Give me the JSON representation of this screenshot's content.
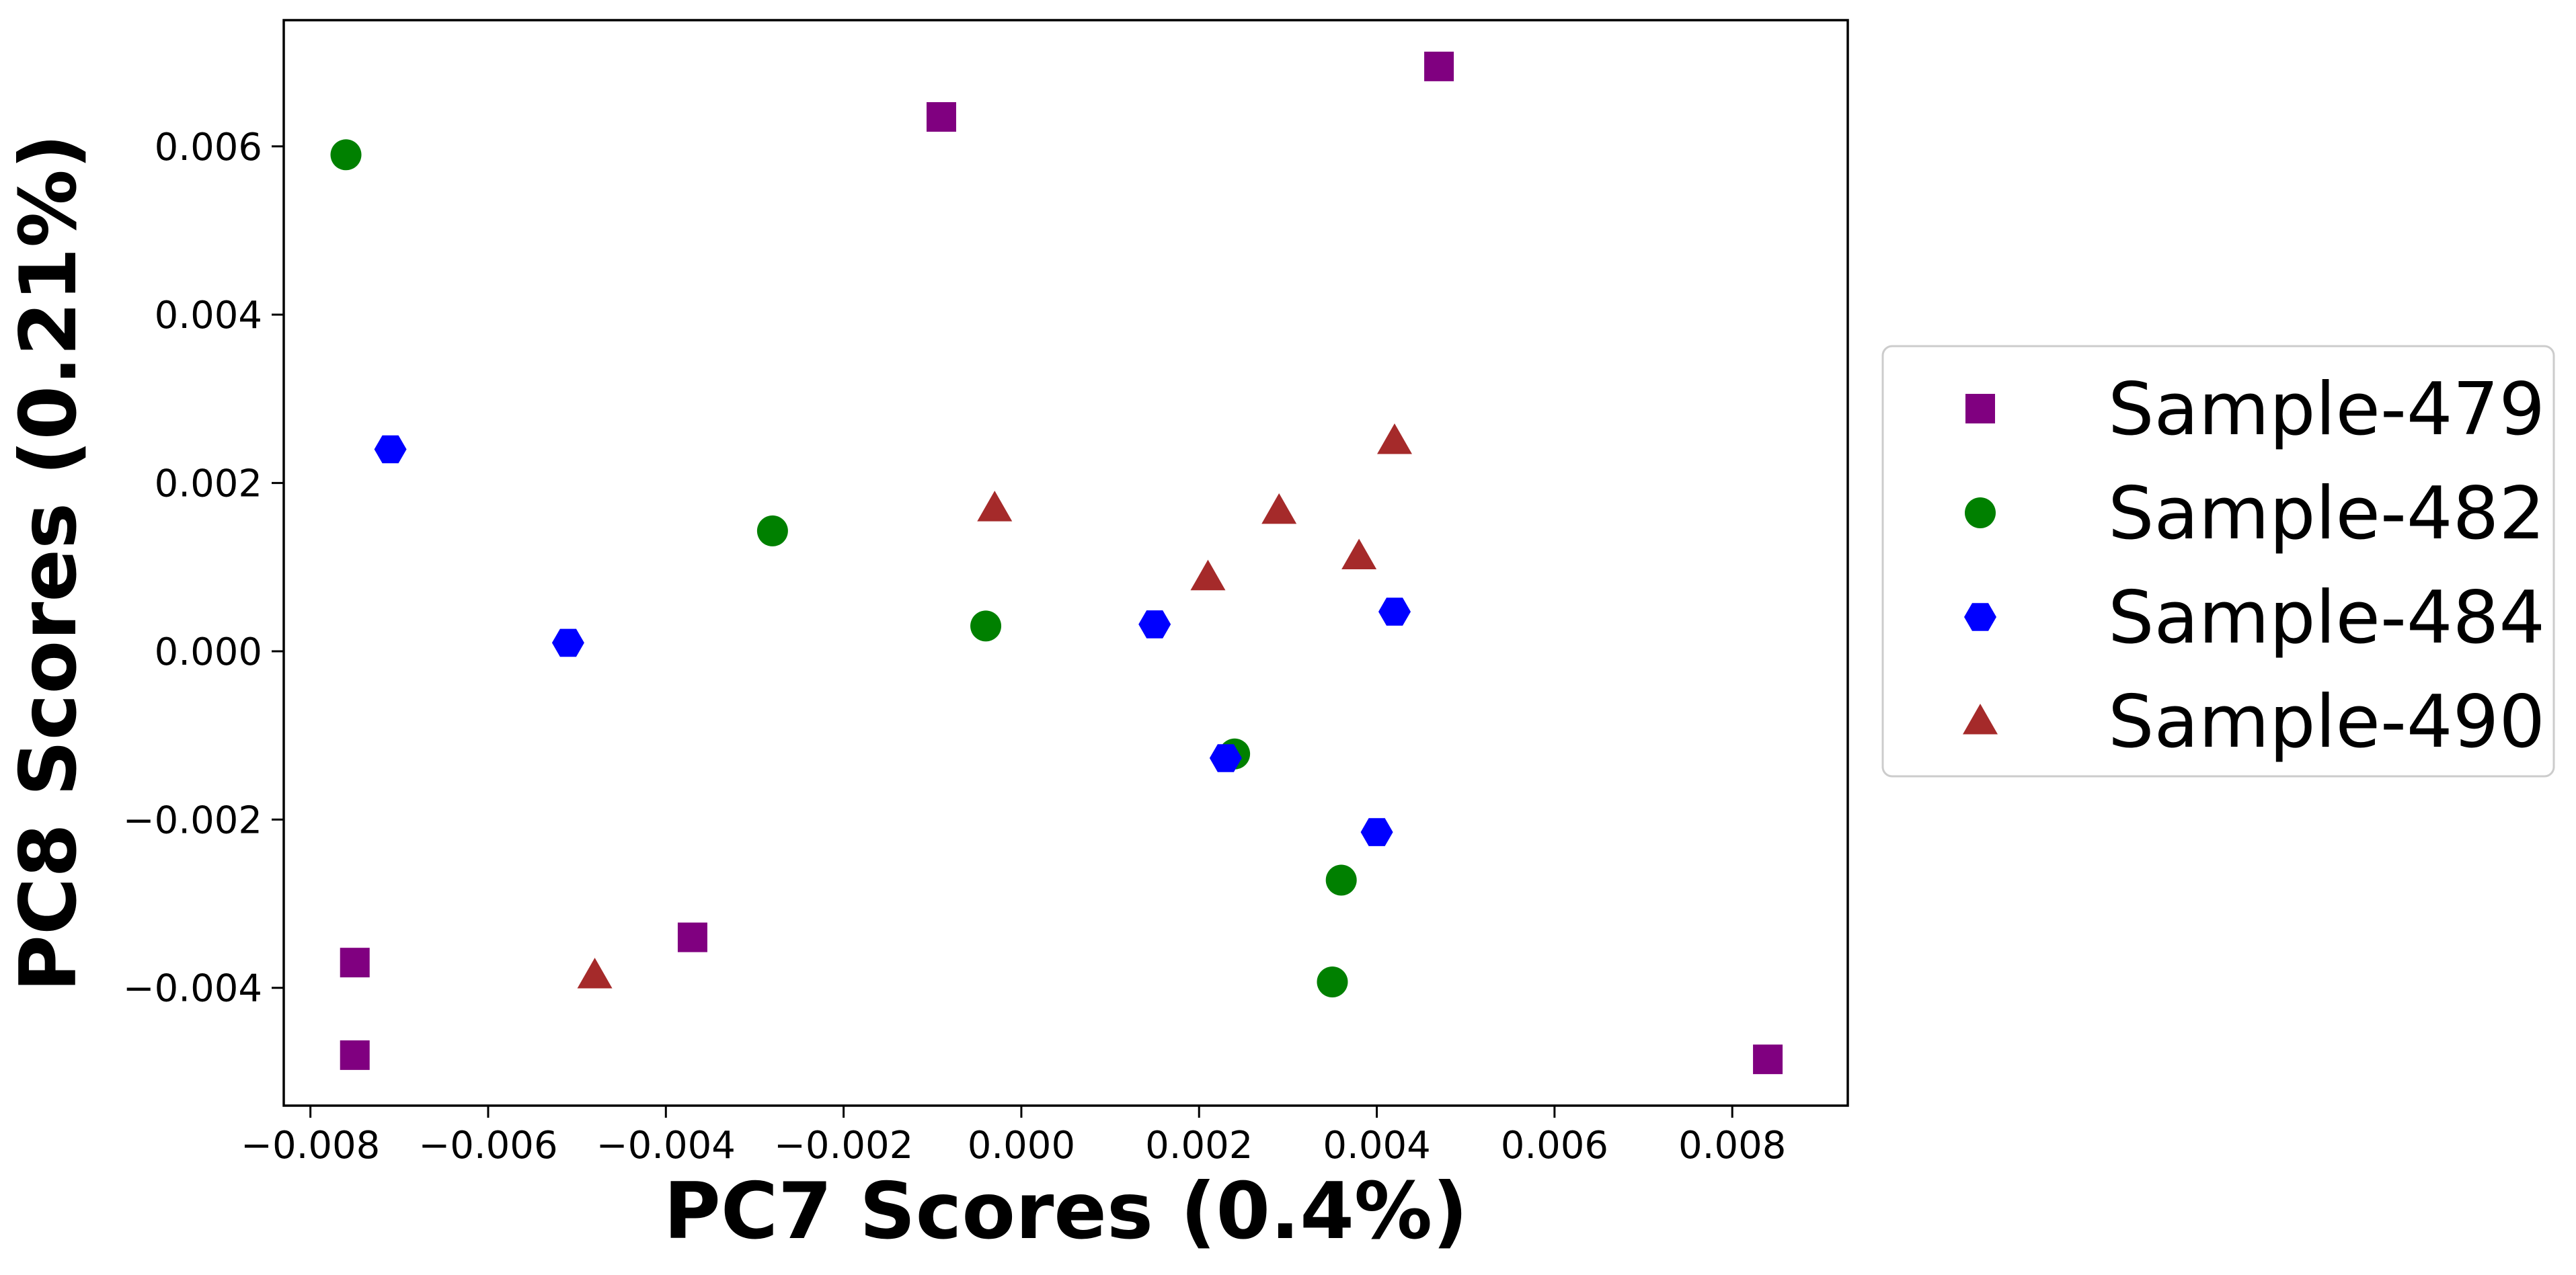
{
  "chart_data": {
    "type": "scatter",
    "title": "",
    "xlabel": "PC7 Scores (0.4%)",
    "ylabel": "PC8 Scores (0.21%)",
    "xlim": [
      -0.0083,
      0.0093
    ],
    "ylim": [
      -0.0054,
      0.0075
    ],
    "xticks": [
      -0.008,
      -0.006,
      -0.004,
      -0.002,
      0.0,
      0.002,
      0.004,
      0.006,
      0.008
    ],
    "xtick_labels": [
      "−0.008",
      "−0.006",
      "−0.004",
      "−0.002",
      "0.000",
      "0.002",
      "0.004",
      "0.006",
      "0.008"
    ],
    "yticks": [
      -0.004,
      -0.002,
      0.0,
      0.002,
      0.004,
      0.006
    ],
    "ytick_labels": [
      "−0.004",
      "−0.002",
      "0.000",
      "0.002",
      "0.004",
      "0.006"
    ],
    "grid": false,
    "legend_position": "outside-right",
    "series": [
      {
        "name": "Sample-479",
        "marker": "square",
        "color": "#800080",
        "points": [
          [
            -0.0009,
            0.00635
          ],
          [
            0.0047,
            0.00695
          ],
          [
            -0.0075,
            -0.0037
          ],
          [
            -0.0075,
            -0.0048
          ],
          [
            -0.0037,
            -0.0034
          ],
          [
            0.0084,
            -0.00485
          ]
        ]
      },
      {
        "name": "Sample-482",
        "marker": "circle",
        "color": "#008000",
        "points": [
          [
            -0.0076,
            0.0059
          ],
          [
            -0.0028,
            0.00143
          ],
          [
            -0.0004,
            0.0003
          ],
          [
            0.0024,
            -0.00122
          ],
          [
            0.0036,
            -0.00272
          ],
          [
            0.0035,
            -0.00393
          ]
        ]
      },
      {
        "name": "Sample-484",
        "marker": "hexagon",
        "color": "#0000ff",
        "points": [
          [
            -0.0071,
            0.0024
          ],
          [
            -0.0051,
            0.0001
          ],
          [
            0.0015,
            0.00032
          ],
          [
            0.0042,
            0.00047
          ],
          [
            0.0023,
            -0.00127
          ],
          [
            0.004,
            -0.00215
          ]
        ]
      },
      {
        "name": "Sample-490",
        "marker": "triangle",
        "color": "#a52a2a",
        "points": [
          [
            -0.0003,
            0.0017
          ],
          [
            0.0021,
            0.00088
          ],
          [
            0.0029,
            0.00167
          ],
          [
            0.0038,
            0.00113
          ],
          [
            0.0042,
            0.0025
          ],
          [
            -0.0048,
            -0.00385
          ]
        ]
      }
    ]
  }
}
